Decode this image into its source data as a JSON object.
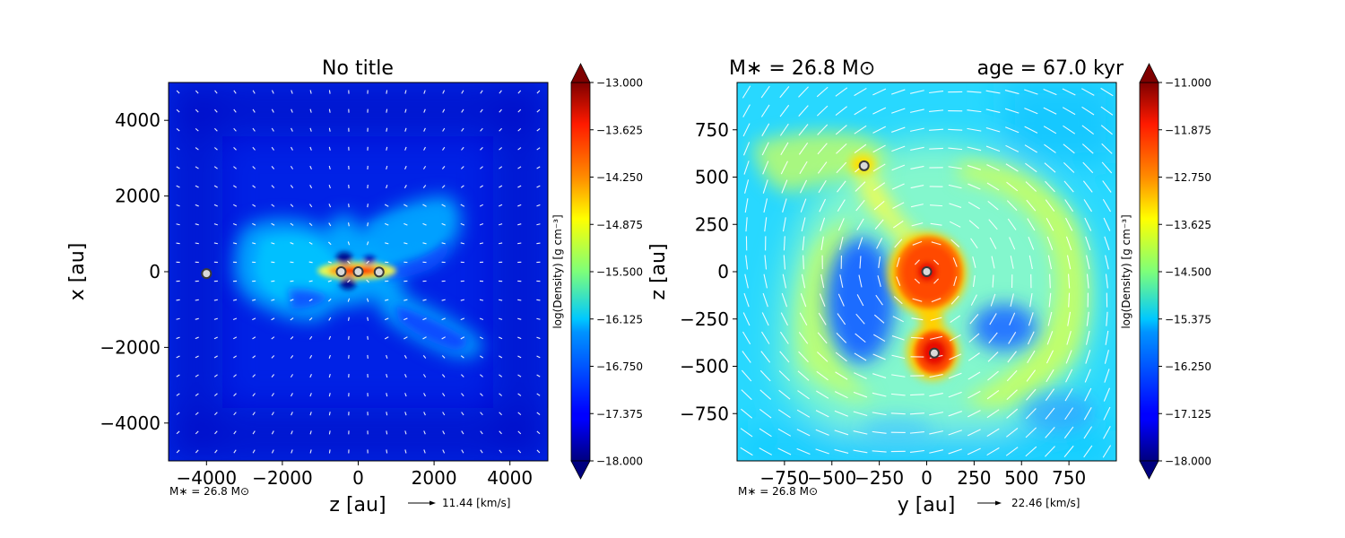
{
  "chart_data": [
    {
      "type": "heatmap",
      "title": "No title",
      "xlabel": "z [au]",
      "ylabel": "x [au]",
      "xlim": [
        -5000,
        5000
      ],
      "ylim": [
        -5000,
        5000
      ],
      "xticks": [
        -4000,
        -2000,
        0,
        2000,
        4000
      ],
      "yticks": [
        -4000,
        -2000,
        0,
        2000,
        4000
      ],
      "xtick_labels": [
        "−4000",
        "−2000",
        "0",
        "2000",
        "4000"
      ],
      "ytick_labels": [
        "−4000",
        "−2000",
        "0",
        "2000",
        "4000"
      ],
      "colorbar": {
        "label": "log(Density) [g cm⁻³]",
        "range": [
          -18.0,
          -13.0
        ],
        "ticks": [
          -18.0,
          -17.375,
          -16.75,
          -16.125,
          -15.5,
          -14.875,
          -14.25,
          -13.625,
          -13.0
        ],
        "tick_labels": [
          "−18.000",
          "−17.375",
          "−16.750",
          "−16.125",
          "−15.500",
          "−14.875",
          "−14.250",
          "−13.625",
          "−13.000"
        ]
      },
      "sinks": [
        {
          "x": -4000,
          "y": -50
        },
        {
          "x": -450,
          "y": 0
        },
        {
          "x": 0,
          "y": 0
        },
        {
          "x": 550,
          "y": -10
        }
      ],
      "stellar_mass": "M∗ = 26.8 M⊙",
      "velocity_key": "11.44 [km/s]",
      "colormap": "jet",
      "grid": false
    },
    {
      "type": "heatmap",
      "title": "M∗ = 26.8 M⊙",
      "subtitle": "age = 67.0 kyr",
      "xlabel": "y [au]",
      "ylabel": "z [au]",
      "xlim": [
        -1000,
        1000
      ],
      "ylim": [
        -1000,
        1000
      ],
      "xticks": [
        -750,
        -500,
        -250,
        0,
        250,
        500,
        750
      ],
      "yticks": [
        -750,
        -500,
        -250,
        0,
        250,
        500,
        750
      ],
      "xtick_labels": [
        "−750",
        "−500",
        "−250",
        "0",
        "250",
        "500",
        "750"
      ],
      "ytick_labels": [
        "−750",
        "−500",
        "−250",
        "0",
        "250",
        "500",
        "750"
      ],
      "colorbar": {
        "label": "log(Density) [g cm⁻³]",
        "range": [
          -18.0,
          -11.0
        ],
        "ticks": [
          -18.0,
          -17.125,
          -16.25,
          -15.375,
          -14.5,
          -13.625,
          -12.75,
          -11.875,
          -11.0
        ],
        "tick_labels": [
          "−18.000",
          "−17.125",
          "−16.250",
          "−15.375",
          "−14.500",
          "−13.625",
          "−12.750",
          "−11.875",
          "−11.000"
        ]
      },
      "sinks": [
        {
          "x": -330,
          "y": 560
        },
        {
          "x": 0,
          "y": 0
        },
        {
          "x": 40,
          "y": -430
        }
      ],
      "stellar_mass": "M∗ = 26.8 M⊙",
      "velocity_key": "22.46 [km/s]",
      "colormap": "jet",
      "grid": false
    }
  ]
}
